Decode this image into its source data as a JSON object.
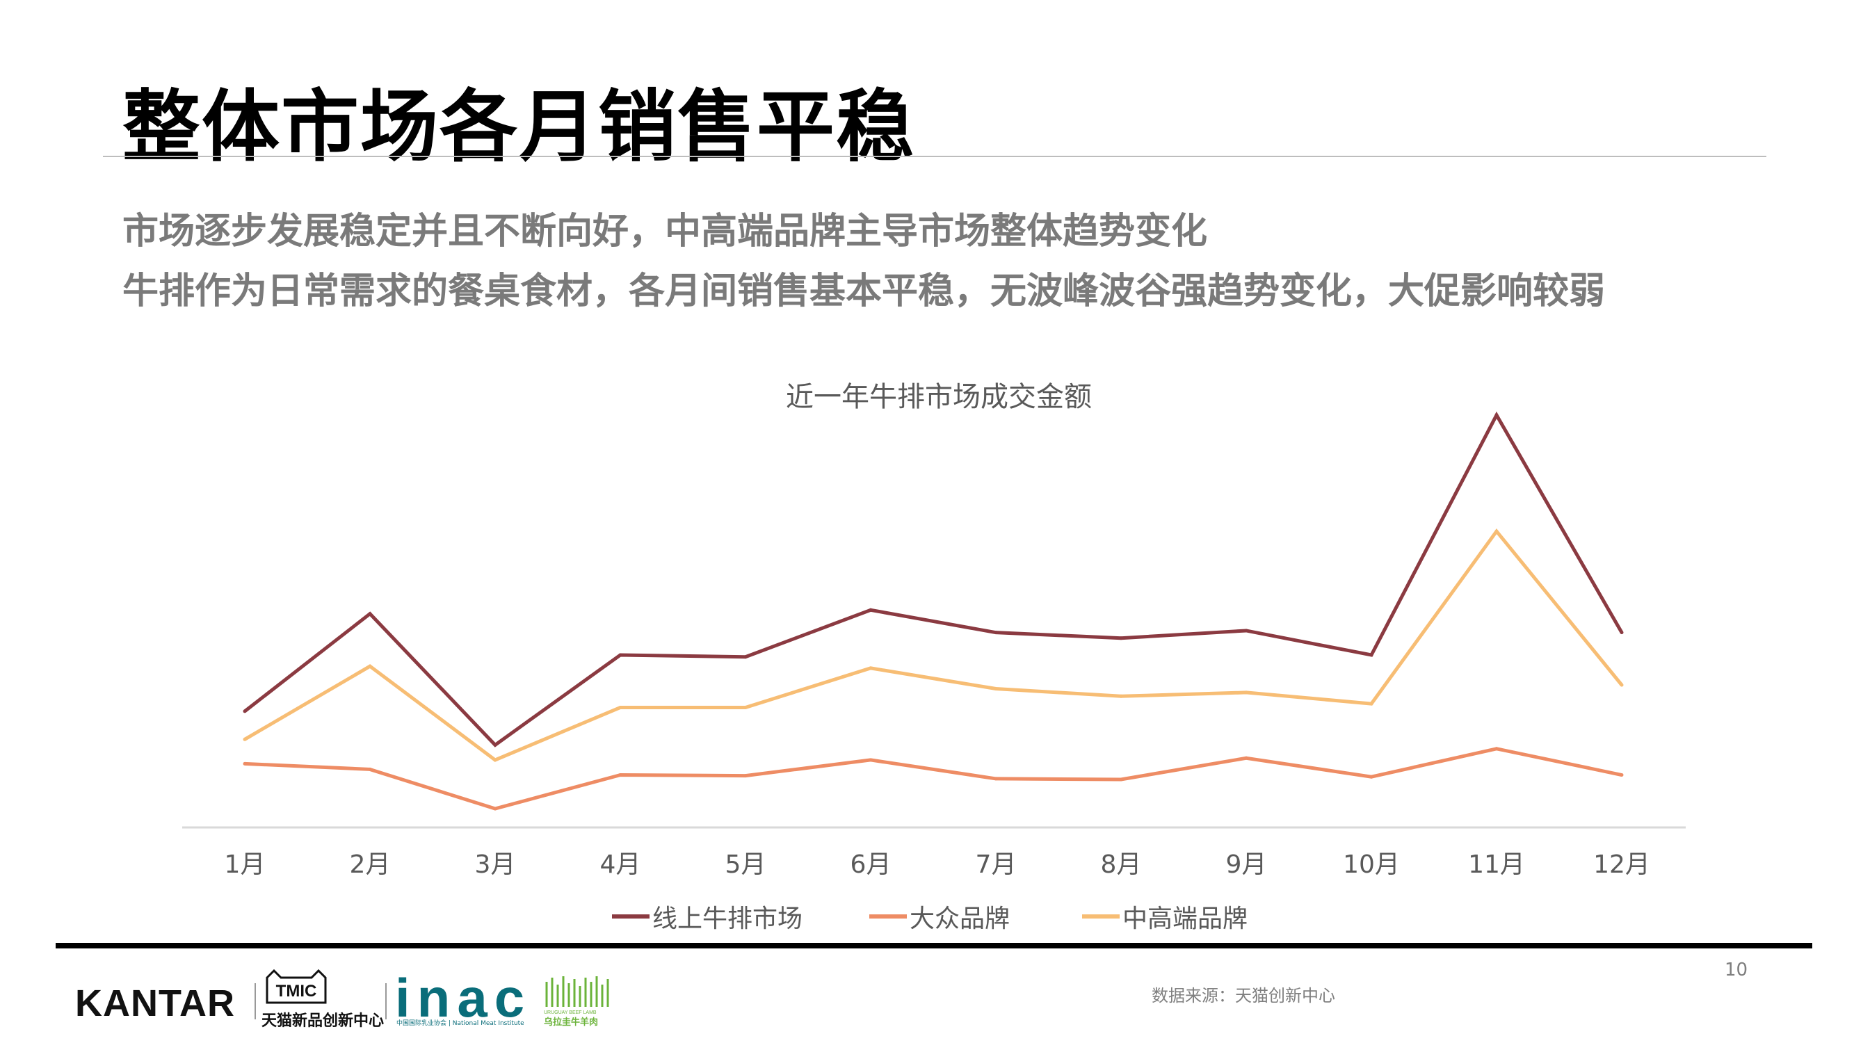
{
  "slide": {
    "title": "整体市场各月销售平稳",
    "subtitle_1": "市场逐步发展稳定并且不断向好，中高端品牌主导市场整体趋势变化",
    "subtitle_2": "牛排作为日常需求的餐桌食材，各月间销售基本平稳，无波峰波谷强趋势变化，大促影响较弱",
    "page_number": "10",
    "source": "数据来源：天猫创新中心"
  },
  "logos": {
    "kantar": "KANTAR",
    "tmic_badge": "TMIC",
    "tmic": "天猫新品创新中心",
    "inac": "inac",
    "inac_sub": "中国国际乳业协会 | National Meat Institute",
    "uruguay_en": "URUGUAY BEEF LAMB",
    "uruguay_cn": "乌拉圭牛羊肉"
  },
  "chart_data": {
    "type": "line",
    "title": "近一年牛排市场成交金额",
    "categories": [
      "1月",
      "2月",
      "3月",
      "4月",
      "5月",
      "6月",
      "7月",
      "8月",
      "9月",
      "10月",
      "11月",
      "12月"
    ],
    "series": [
      {
        "name": "线上牛排市场",
        "color": "#8b3a41",
        "values": [
          31,
          57,
          22,
          46,
          45.5,
          58,
          52,
          50.5,
          52.5,
          46,
          110,
          52
        ]
      },
      {
        "name": "大众品牌",
        "color": "#ee8c64",
        "values": [
          17,
          15.5,
          5,
          14,
          13.8,
          18,
          13,
          12.8,
          18.5,
          13.5,
          21,
          14
        ]
      },
      {
        "name": "中高端品牌",
        "color": "#f7bd74",
        "values": [
          23.5,
          43,
          18,
          32,
          32,
          42.5,
          37,
          35,
          36,
          33,
          79,
          38
        ]
      }
    ],
    "ylim": [
      0,
      115
    ],
    "xlabel": "",
    "ylabel": "",
    "grid": false,
    "legend": "bottom",
    "line_width": 5
  }
}
